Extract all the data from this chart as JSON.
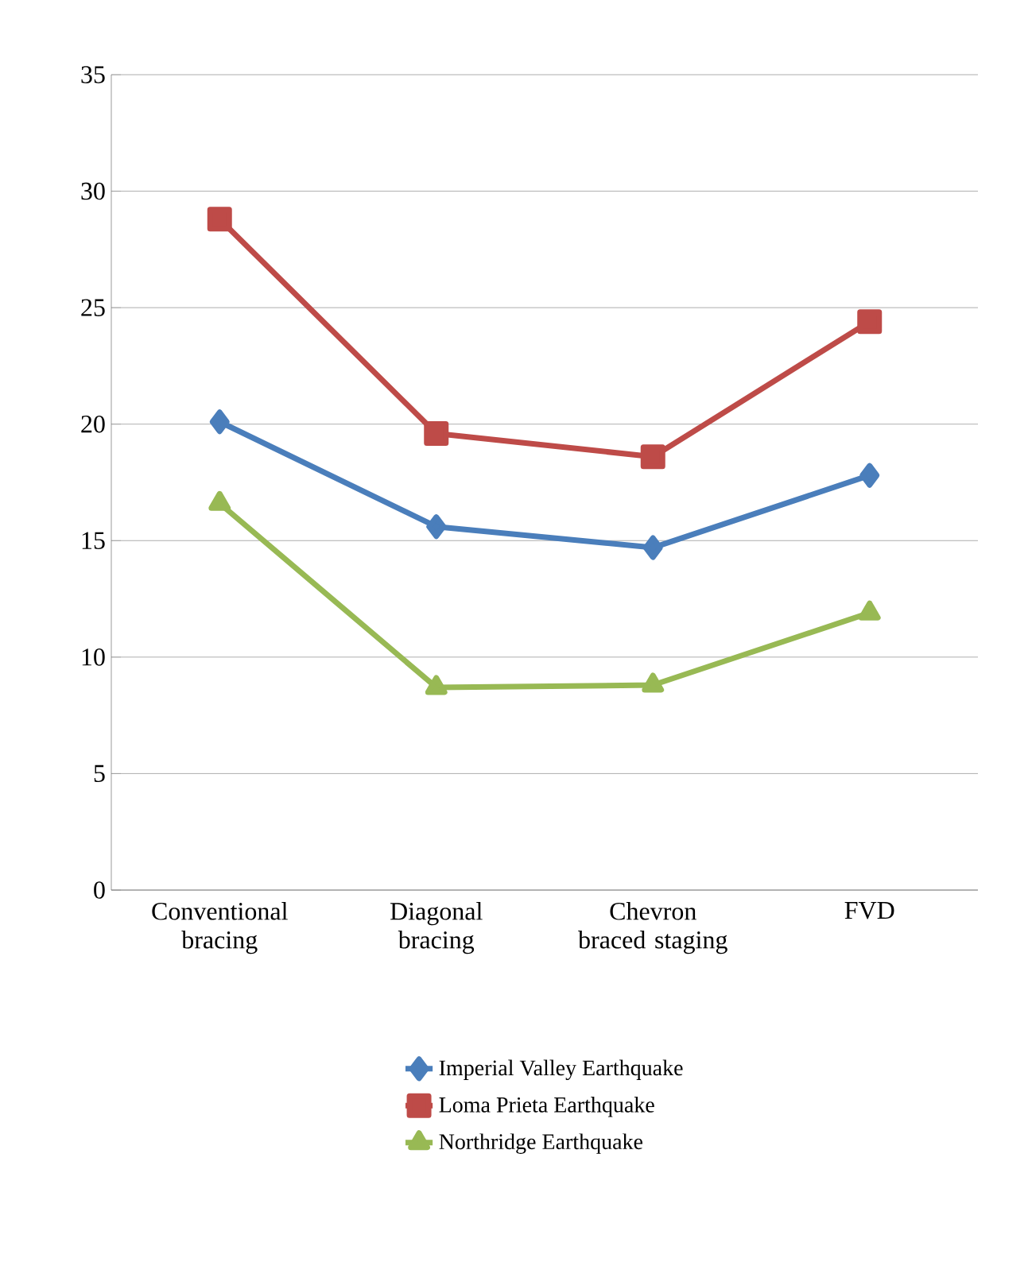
{
  "chart_data": {
    "type": "line",
    "categories": [
      "Conventional bracing",
      "Diagonal bracing",
      "Chevron braced staging",
      "FVD"
    ],
    "series": [
      {
        "name": "Imperial Valley Earthquake",
        "color": "#4a7ebb",
        "marker": "diamond",
        "values": [
          20.1,
          15.6,
          14.7,
          17.8
        ]
      },
      {
        "name": "Loma Prieta Earthquake",
        "color": "#be4b48",
        "marker": "square",
        "values": [
          28.8,
          19.6,
          18.6,
          24.4
        ]
      },
      {
        "name": "Northridge Earthquake",
        "color": "#98b954",
        "marker": "triangle",
        "values": [
          16.6,
          8.7,
          8.8,
          11.9
        ]
      }
    ],
    "ylim": [
      0,
      35
    ],
    "yticks": [
      0,
      5,
      10,
      15,
      20,
      25,
      30,
      35
    ],
    "grid": "y",
    "legend": "bottom",
    "line_style": "solid"
  }
}
